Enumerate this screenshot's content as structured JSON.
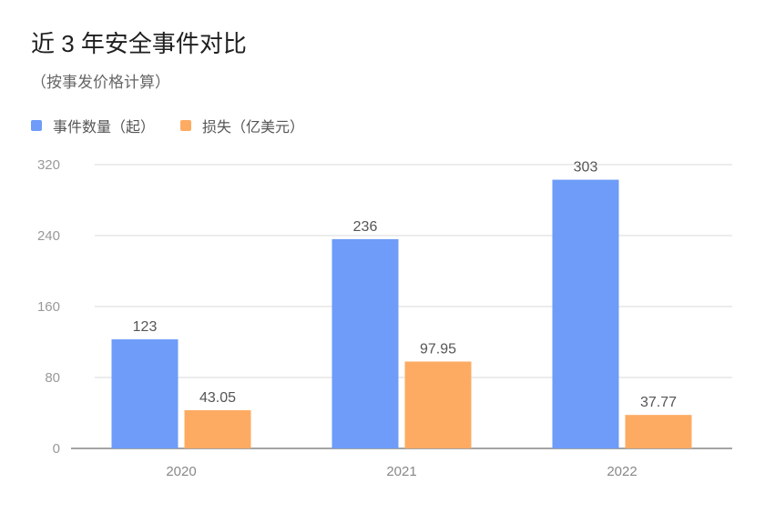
{
  "chart_data": {
    "type": "bar",
    "title": "近 3 年安全事件对比",
    "subtitle": "（按事发价格计算）",
    "categories": [
      "2020",
      "2021",
      "2022"
    ],
    "series": [
      {
        "name": "事件数量（起）",
        "values": [
          123,
          236,
          303
        ],
        "labels": [
          "123",
          "236",
          "303"
        ],
        "color": "#6e9cf8"
      },
      {
        "name": "损失（亿美元）",
        "values": [
          43.05,
          97.95,
          37.77
        ],
        "labels": [
          "43.05",
          "97.95",
          "37.77"
        ],
        "color": "#fdab63"
      }
    ],
    "ylim": [
      0,
      320
    ],
    "yticks": [
      "0",
      "80",
      "160",
      "240",
      "320"
    ],
    "grid": true,
    "legend_position": "top-left"
  }
}
